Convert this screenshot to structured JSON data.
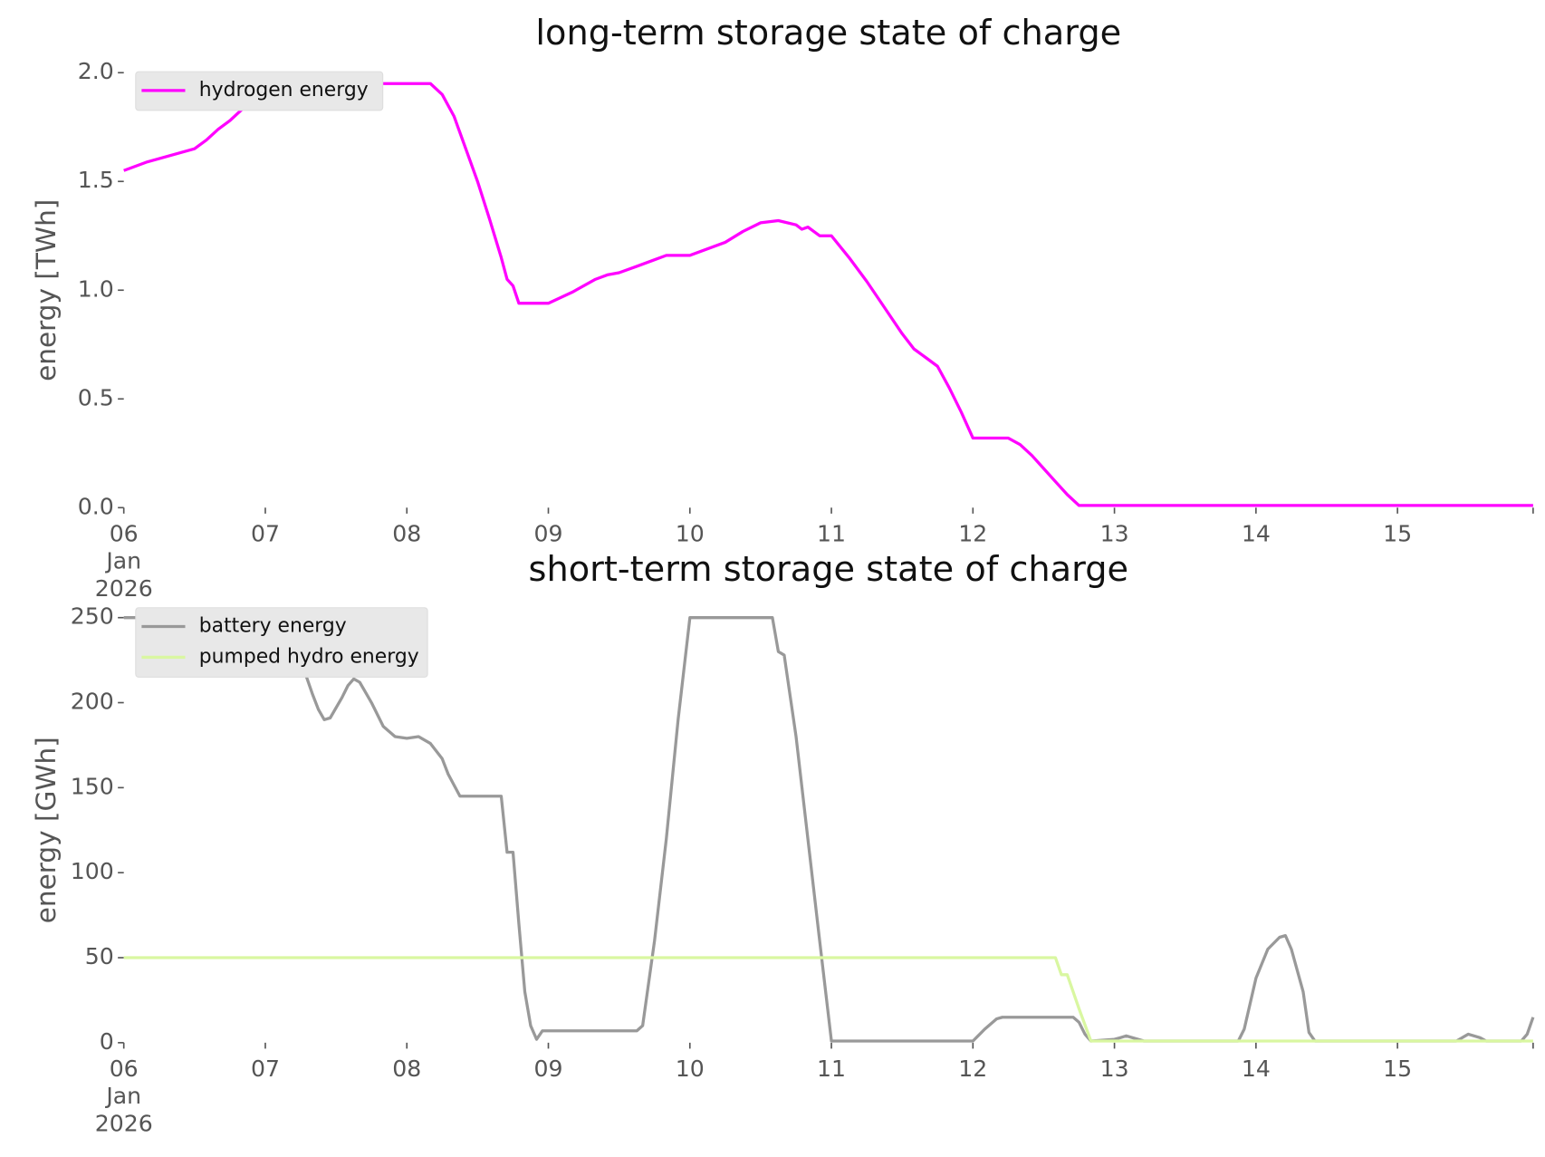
{
  "chart_data": [
    {
      "type": "line",
      "title": "long-term storage state of charge",
      "y_label": "energy [TWh]",
      "xlim": [
        "2026-01-06T00:00",
        "2026-01-15T23:00"
      ],
      "xticks": [
        {
          "value": "2026-01-06",
          "label": "06\nJan\n2026"
        },
        {
          "value": "2026-01-07",
          "label": "07"
        },
        {
          "value": "2026-01-08",
          "label": "08"
        },
        {
          "value": "2026-01-09",
          "label": "09"
        },
        {
          "value": "2026-01-10",
          "label": "10"
        },
        {
          "value": "2026-01-11",
          "label": "11"
        },
        {
          "value": "2026-01-12",
          "label": "12"
        },
        {
          "value": "2026-01-13",
          "label": "13"
        },
        {
          "value": "2026-01-14",
          "label": "14"
        },
        {
          "value": "2026-01-15",
          "label": "15"
        }
      ],
      "ylim": [
        0,
        2.0
      ],
      "yticks": [
        {
          "value": 0,
          "label": "0.0"
        },
        {
          "value": 0.5,
          "label": "0.5"
        },
        {
          "value": 1,
          "label": "1.0"
        },
        {
          "value": 1.5,
          "label": "1.5"
        },
        {
          "value": 2,
          "label": "2.0"
        }
      ],
      "grid": false,
      "legend": "upper left",
      "series": [
        {
          "name": "hydrogen energy",
          "color": "#ff00ff",
          "x": [
            "2026-01-06T00:00",
            "2026-01-06T04:00",
            "2026-01-06T08:00",
            "2026-01-06T12:00",
            "2026-01-06T14:00",
            "2026-01-06T16:00",
            "2026-01-06T18:00",
            "2026-01-06T20:00",
            "2026-01-06T22:00",
            "2026-01-07T00:00",
            "2026-01-08T04:00",
            "2026-01-08T06:00",
            "2026-01-08T08:00",
            "2026-01-08T10:00",
            "2026-01-08T12:00",
            "2026-01-08T14:00",
            "2026-01-08T16:00",
            "2026-01-08T17:00",
            "2026-01-08T18:00",
            "2026-01-08T19:00",
            "2026-01-09T00:00",
            "2026-01-09T04:00",
            "2026-01-09T08:00",
            "2026-01-09T10:00",
            "2026-01-09T12:00",
            "2026-01-09T15:00",
            "2026-01-09T18:00",
            "2026-01-09T20:00",
            "2026-01-10T00:00",
            "2026-01-10T06:00",
            "2026-01-10T09:00",
            "2026-01-10T12:00",
            "2026-01-10T15:00",
            "2026-01-10T18:00",
            "2026-01-10T19:00",
            "2026-01-10T20:00",
            "2026-01-10T22:00",
            "2026-01-11T00:00",
            "2026-01-11T03:00",
            "2026-01-11T06:00",
            "2026-01-11T09:00",
            "2026-01-11T12:00",
            "2026-01-11T14:00",
            "2026-01-11T16:00",
            "2026-01-11T18:00",
            "2026-01-11T20:00",
            "2026-01-11T22:00",
            "2026-01-12T00:00",
            "2026-01-12T06:00",
            "2026-01-12T08:00",
            "2026-01-12T10:00",
            "2026-01-12T12:00",
            "2026-01-12T14:00",
            "2026-01-12T16:00",
            "2026-01-12T18:00",
            "2026-01-13T00:00",
            "2026-01-15T23:00"
          ],
          "values": [
            1.55,
            1.59,
            1.62,
            1.65,
            1.69,
            1.74,
            1.78,
            1.83,
            1.88,
            1.95,
            1.95,
            1.9,
            1.8,
            1.65,
            1.5,
            1.33,
            1.15,
            1.05,
            1.02,
            0.94,
            0.94,
            0.99,
            1.05,
            1.07,
            1.08,
            1.11,
            1.14,
            1.16,
            1.16,
            1.22,
            1.27,
            1.31,
            1.32,
            1.3,
            1.28,
            1.29,
            1.25,
            1.25,
            1.15,
            1.04,
            0.92,
            0.8,
            0.73,
            0.69,
            0.65,
            0.55,
            0.44,
            0.32,
            0.32,
            0.29,
            0.24,
            0.18,
            0.12,
            0.06,
            0.01,
            0.01,
            0.01
          ]
        }
      ]
    },
    {
      "type": "line",
      "title": "short-term storage state of charge",
      "y_label": "energy [GWh]",
      "xlim": [
        "2026-01-06T00:00",
        "2026-01-15T23:00"
      ],
      "xticks": [
        {
          "value": "2026-01-06",
          "label": "06\nJan\n2026"
        },
        {
          "value": "2026-01-07",
          "label": "07"
        },
        {
          "value": "2026-01-08",
          "label": "08"
        },
        {
          "value": "2026-01-09",
          "label": "09"
        },
        {
          "value": "2026-01-10",
          "label": "10"
        },
        {
          "value": "2026-01-11",
          "label": "11"
        },
        {
          "value": "2026-01-12",
          "label": "12"
        },
        {
          "value": "2026-01-13",
          "label": "13"
        },
        {
          "value": "2026-01-14",
          "label": "14"
        },
        {
          "value": "2026-01-15",
          "label": "15"
        }
      ],
      "ylim": [
        0,
        250
      ],
      "yticks": [
        0,
        50,
        100,
        150,
        200,
        250
      ],
      "grid": false,
      "legend": "upper left",
      "series": [
        {
          "name": "battery energy",
          "color": "#999999",
          "x": [
            "2026-01-06T00:00",
            "2026-01-06T21:00",
            "2026-01-07T00:00",
            "2026-01-07T03:00",
            "2026-01-07T06:00",
            "2026-01-07T08:00",
            "2026-01-07T09:00",
            "2026-01-07T10:00",
            "2026-01-07T11:00",
            "2026-01-07T13:00",
            "2026-01-07T14:00",
            "2026-01-07T15:00",
            "2026-01-07T16:00",
            "2026-01-07T18:00",
            "2026-01-07T20:00",
            "2026-01-07T22:00",
            "2026-01-08T00:00",
            "2026-01-08T02:00",
            "2026-01-08T04:00",
            "2026-01-08T06:00",
            "2026-01-08T07:00",
            "2026-01-08T09:00",
            "2026-01-08T16:00",
            "2026-01-08T17:00",
            "2026-01-08T18:00",
            "2026-01-08T19:00",
            "2026-01-08T20:00",
            "2026-01-08T21:00",
            "2026-01-08T22:00",
            "2026-01-08T23:00",
            "2026-01-09T15:00",
            "2026-01-09T16:00",
            "2026-01-09T18:00",
            "2026-01-09T20:00",
            "2026-01-09T22:00",
            "2026-01-10T00:00",
            "2026-01-10T14:00",
            "2026-01-10T15:00",
            "2026-01-10T16:00",
            "2026-01-10T18:00",
            "2026-01-10T20:00",
            "2026-01-10T22:00",
            "2026-01-11T00:00",
            "2026-01-12T00:00",
            "2026-01-12T02:00",
            "2026-01-12T04:00",
            "2026-01-12T05:00",
            "2026-01-12T17:00",
            "2026-01-12T18:00",
            "2026-01-12T19:00",
            "2026-01-12T20:00",
            "2026-01-13T00:00",
            "2026-01-13T01:00",
            "2026-01-13T02:00",
            "2026-01-13T04:00",
            "2026-01-13T05:00",
            "2026-01-13T21:00",
            "2026-01-13T22:00",
            "2026-01-14T00:00",
            "2026-01-14T02:00",
            "2026-01-14T04:00",
            "2026-01-14T05:00",
            "2026-01-14T06:00",
            "2026-01-14T08:00",
            "2026-01-14T09:00",
            "2026-01-14T10:00",
            "2026-01-15T10:00",
            "2026-01-15T12:00",
            "2026-01-15T14:00",
            "2026-01-15T15:00",
            "2026-01-15T21:00",
            "2026-01-15T22:00",
            "2026-01-15T23:00"
          ],
          "values": [
            250,
            250,
            238,
            233,
            225,
            205,
            196,
            190,
            191,
            203,
            210,
            214,
            212,
            200,
            186,
            180,
            179,
            180,
            176,
            167,
            158,
            145,
            145,
            112,
            112,
            70,
            30,
            10,
            2,
            7,
            7,
            10,
            60,
            120,
            190,
            250,
            250,
            230,
            228,
            180,
            120,
            60,
            1,
            1,
            8,
            14,
            15,
            15,
            12,
            5,
            1,
            2,
            3,
            4,
            2,
            1,
            1,
            8,
            38,
            55,
            62,
            63,
            55,
            30,
            6,
            1,
            1,
            5,
            3,
            1,
            1,
            5,
            15
          ]
        },
        {
          "name": "pumped hydro energy",
          "color": "#d9f7a1",
          "x": [
            "2026-01-06T00:00",
            "2026-01-12T14:00",
            "2026-01-12T15:00",
            "2026-01-12T16:00",
            "2026-01-12T18:00",
            "2026-01-12T20:00",
            "2026-01-15T23:00"
          ],
          "values": [
            50,
            50,
            40,
            40,
            20,
            1,
            1
          ]
        }
      ]
    }
  ]
}
